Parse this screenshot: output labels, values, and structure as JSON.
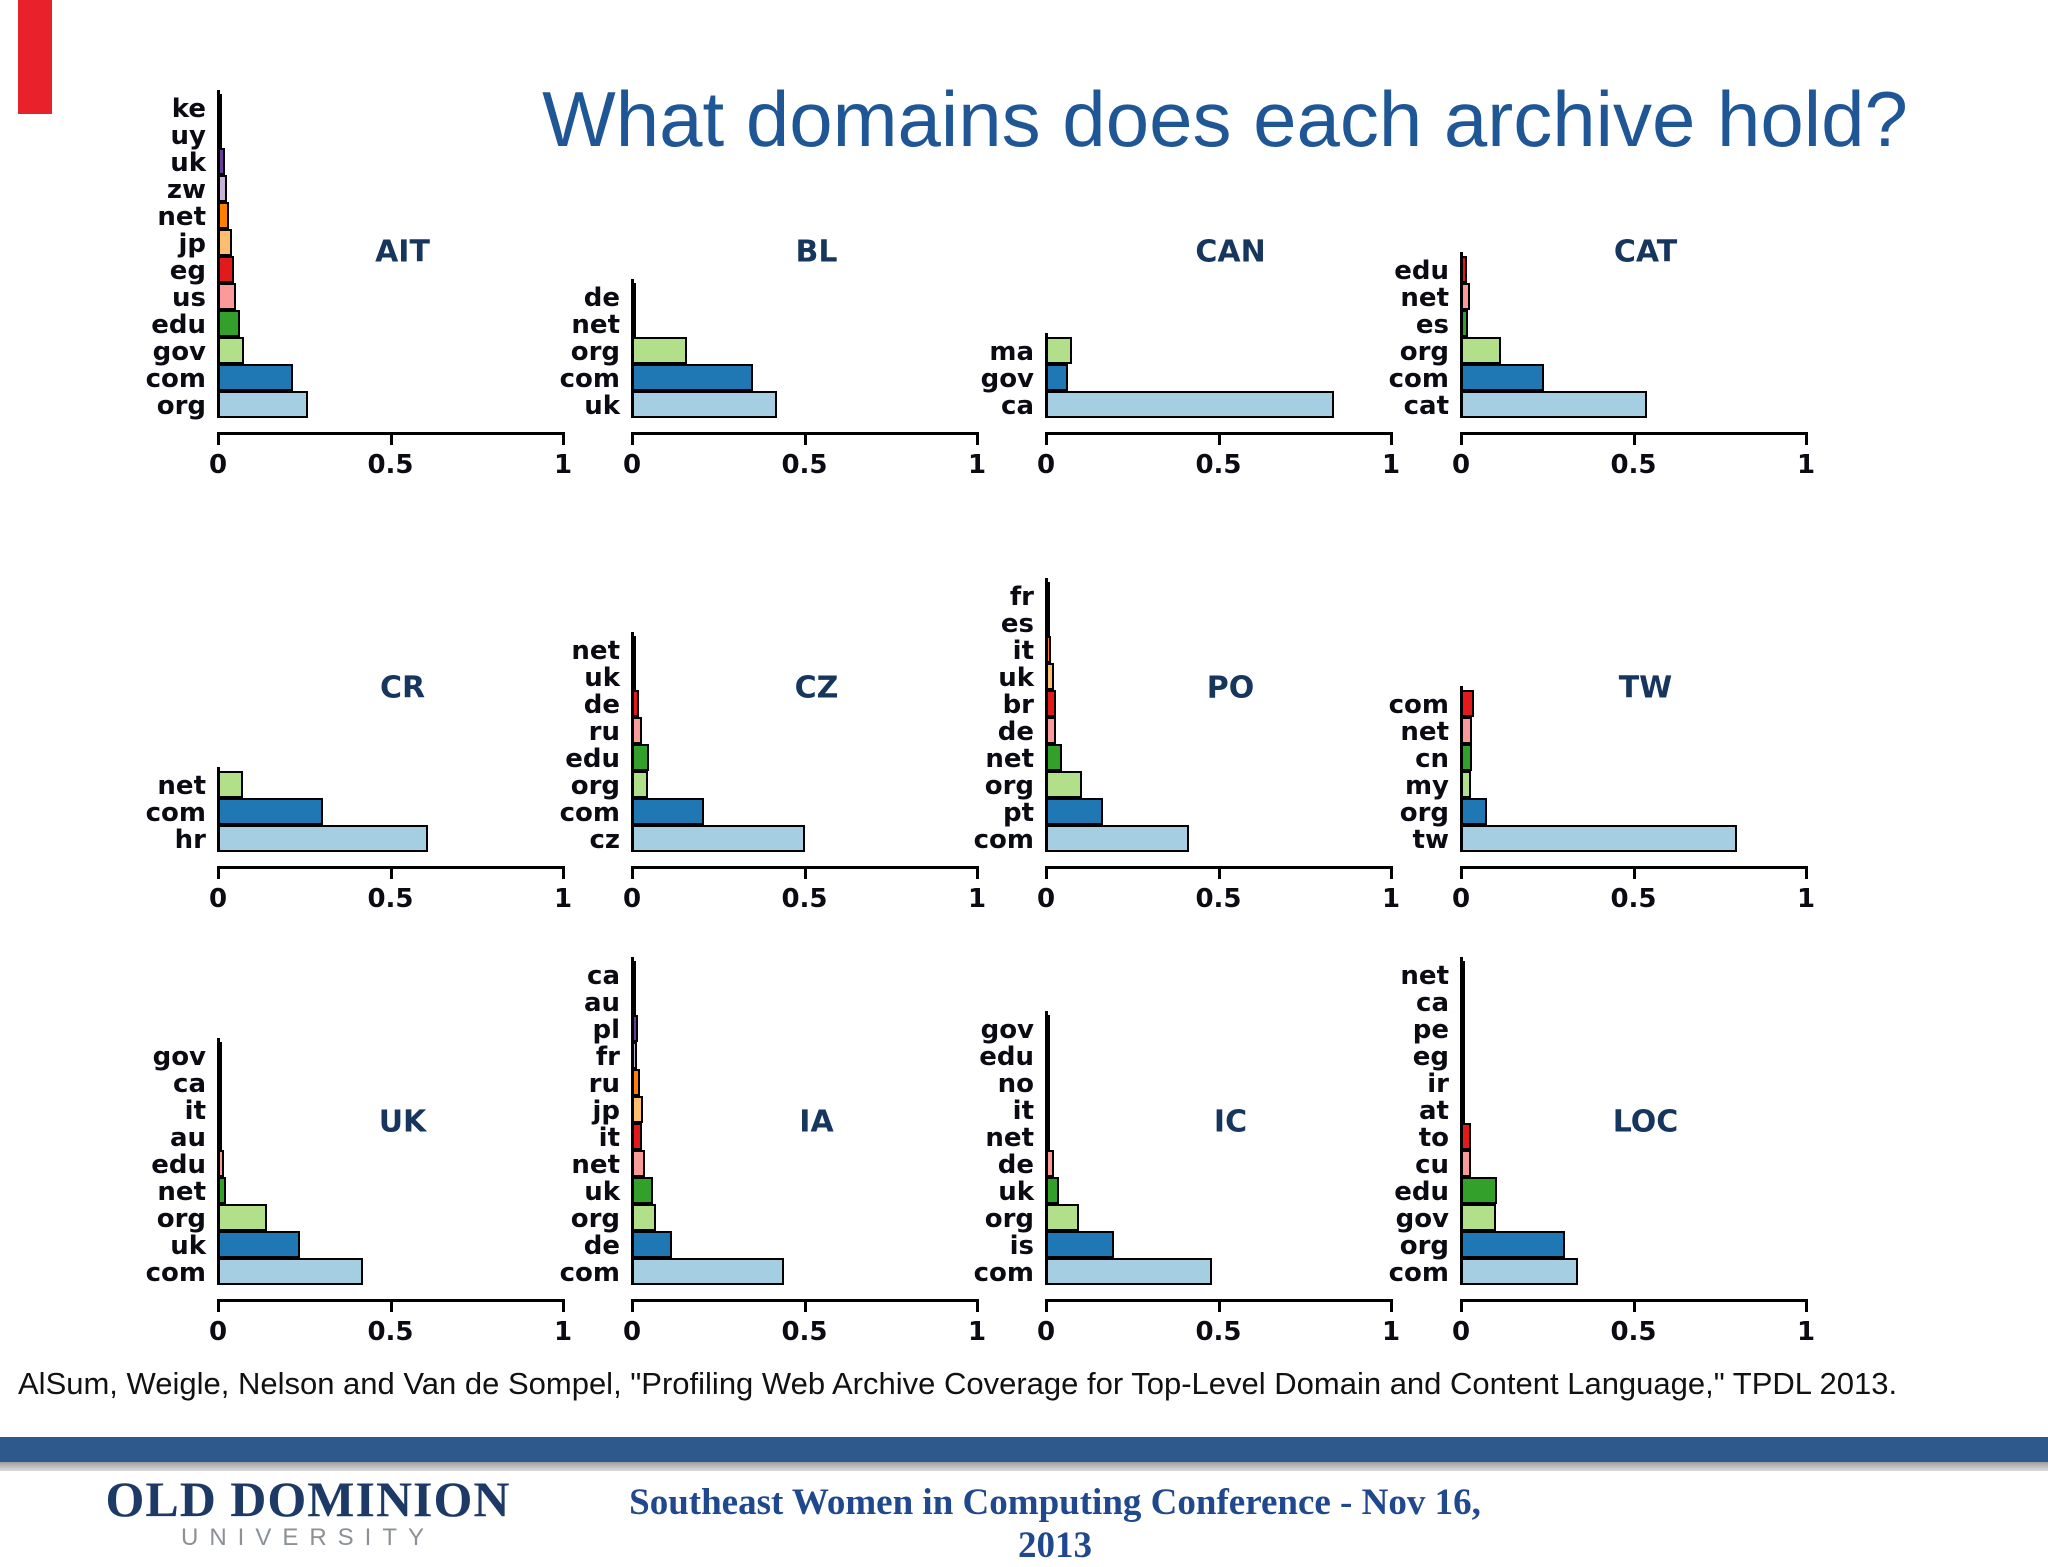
{
  "slide": {
    "title": "What domains does each archive hold?",
    "citation": "AlSum, Weigle, Nelson and Van de Sompel, \"Profiling Web Archive Coverage for Top-Level Domain and Content Language,\" TPDL 2013.",
    "footer": {
      "logo_line1": "OLD DOMINION",
      "logo_line2": "UNIVERSITY",
      "conference": "Southeast Women in Computing Conference - Nov 16, 2013"
    },
    "colors": {
      "title_text": "#1f5796",
      "citation_text": "#111111",
      "divider_bar": "#2e598c",
      "logo_navy": "#1d3a66",
      "logo_gray": "#8b9196",
      "conference_text": "#20488f",
      "corner_mark": "#e8212a"
    }
  },
  "chart_data": {
    "type": "bar",
    "orientation": "horizontal",
    "xlim": [
      0,
      1
    ],
    "xticks": [
      0,
      0.5,
      1
    ],
    "grid": false,
    "palette_bottom_to_top": [
      "#a6cee3",
      "#1f78b4",
      "#b2df8a",
      "#33a02c",
      "#fb9a99",
      "#e31a1c",
      "#fdbf6f",
      "#ff7f00",
      "#cab2d6",
      "#6a3d9a",
      "#ffff99",
      "#b15928"
    ],
    "charts": [
      {
        "name": "AIT",
        "categories": [
          "ke",
          "uy",
          "uk",
          "zw",
          "net",
          "jp",
          "eg",
          "us",
          "edu",
          "gov",
          "com",
          "org"
        ],
        "values": [
          0.004,
          0.012,
          0.02,
          0.026,
          0.032,
          0.042,
          0.047,
          0.052,
          0.064,
          0.074,
          0.218,
          0.262
        ]
      },
      {
        "name": "BL",
        "categories": [
          "de",
          "net",
          "org",
          "com",
          "uk"
        ],
        "values": [
          0.004,
          0.006,
          0.16,
          0.35,
          0.42
        ]
      },
      {
        "name": "CAN",
        "categories": [
          "ma",
          "gov",
          "ca"
        ],
        "values": [
          0.075,
          0.065,
          0.835
        ]
      },
      {
        "name": "CAT",
        "categories": [
          "edu",
          "net",
          "es",
          "org",
          "com",
          "cat"
        ],
        "values": [
          0.018,
          0.027,
          0.02,
          0.117,
          0.24,
          0.54
        ]
      },
      {
        "name": "CR",
        "categories": [
          "net",
          "com",
          "hr"
        ],
        "values": [
          0.072,
          0.305,
          0.61
        ]
      },
      {
        "name": "CZ",
        "categories": [
          "net",
          "uk",
          "de",
          "ru",
          "edu",
          "org",
          "com",
          "cz"
        ],
        "values": [
          0.004,
          0.006,
          0.02,
          0.03,
          0.049,
          0.047,
          0.21,
          0.5
        ]
      },
      {
        "name": "PO",
        "categories": [
          "fr",
          "es",
          "it",
          "uk",
          "br",
          "de",
          "net",
          "org",
          "pt",
          "com"
        ],
        "values": [
          0.003,
          0.005,
          0.015,
          0.022,
          0.03,
          0.028,
          0.045,
          0.105,
          0.165,
          0.415
        ]
      },
      {
        "name": "TW",
        "categories": [
          "com",
          "net",
          "cn",
          "my",
          "org",
          "tw"
        ],
        "values": [
          0.037,
          0.032,
          0.032,
          0.028,
          0.074,
          0.8
        ]
      },
      {
        "name": "UK",
        "categories": [
          "gov",
          "ca",
          "it",
          "au",
          "edu",
          "net",
          "org",
          "uk",
          "com"
        ],
        "values": [
          0.002,
          0.003,
          0.004,
          0.005,
          0.017,
          0.023,
          0.142,
          0.238,
          0.42
        ]
      },
      {
        "name": "IA",
        "categories": [
          "ca",
          "au",
          "pl",
          "fr",
          "ru",
          "jp",
          "it",
          "net",
          "uk",
          "org",
          "de",
          "com"
        ],
        "values": [
          0.003,
          0.006,
          0.017,
          0.015,
          0.023,
          0.033,
          0.03,
          0.037,
          0.06,
          0.07,
          0.116,
          0.44
        ]
      },
      {
        "name": "IC",
        "categories": [
          "gov",
          "edu",
          "no",
          "it",
          "net",
          "de",
          "uk",
          "org",
          "is",
          "com"
        ],
        "values": [
          0.002,
          0.003,
          0.005,
          0.012,
          0.01,
          0.022,
          0.038,
          0.095,
          0.198,
          0.48
        ]
      },
      {
        "name": "LOC",
        "categories": [
          "net",
          "ca",
          "pe",
          "eg",
          "ir",
          "at",
          "to",
          "cu",
          "edu",
          "gov",
          "org",
          "com"
        ],
        "values": [
          0.013,
          0.012,
          0.01,
          0.012,
          0.01,
          0.012,
          0.028,
          0.028,
          0.104,
          0.102,
          0.3,
          0.34
        ]
      }
    ]
  }
}
